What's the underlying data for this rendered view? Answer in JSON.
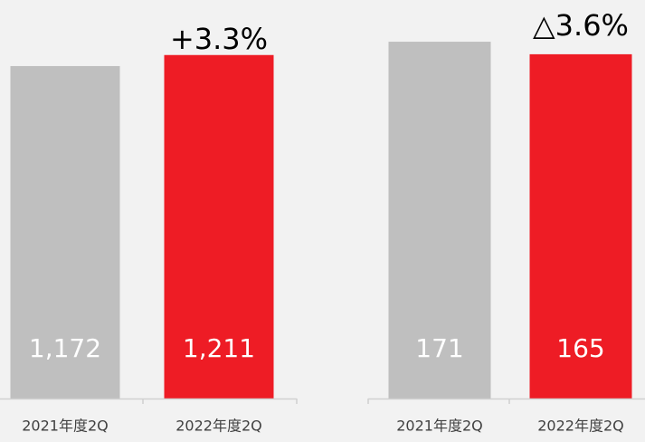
{
  "chart_data": [
    {
      "type": "bar",
      "categories": [
        "2021年度2Q",
        "2022年度2Q"
      ],
      "values": [
        1172,
        1211
      ],
      "value_labels": [
        "1,172",
        "1,211"
      ],
      "colors": [
        "#bfbfbf",
        "#ee1c25"
      ],
      "annotation": "+3.3%",
      "ylim": [
        0,
        1405
      ]
    },
    {
      "type": "bar",
      "categories": [
        "2021年度2Q",
        "2022年度2Q"
      ],
      "values": [
        171,
        165
      ],
      "value_labels": [
        "171",
        "165"
      ],
      "colors": [
        "#bfbfbf",
        "#ee1c25"
      ],
      "annotation": "△3.6%",
      "ylim": [
        0,
        191
      ]
    }
  ]
}
